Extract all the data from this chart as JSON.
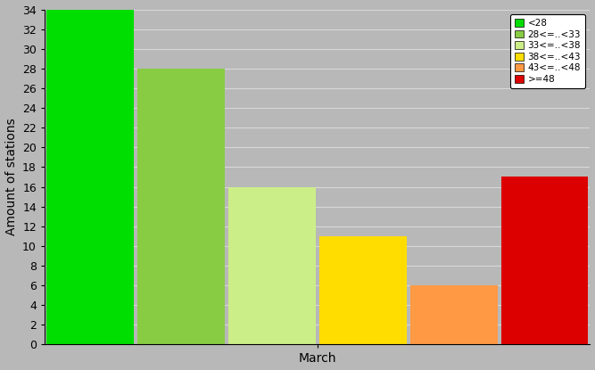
{
  "bars": [
    {
      "label": "<28",
      "value": 34,
      "color": "#00dd00"
    },
    {
      "label": "28<=..<33",
      "value": 28,
      "color": "#88cc44"
    },
    {
      "label": "33<=..<38",
      "value": 16,
      "color": "#ccee88"
    },
    {
      "label": "38<=..<43",
      "value": 11,
      "color": "#ffdd00"
    },
    {
      "label": "43<=..<48",
      "value": 6,
      "color": "#ff9944"
    },
    {
      "label": ">=48",
      "value": 17,
      "color": "#dd0000"
    }
  ],
  "ylabel": "Amount of stations",
  "xlabel": "March",
  "ylim": [
    0,
    34
  ],
  "yticks": [
    0,
    2,
    4,
    6,
    8,
    10,
    12,
    14,
    16,
    18,
    20,
    22,
    24,
    26,
    28,
    30,
    32,
    34
  ],
  "plot_bg_color": "#b8b8b8",
  "fig_bg_color": "#b8b8b8",
  "grid_color": "#d8d8d8",
  "legend_fontsize": 7.5,
  "bar_gap": 0.04
}
